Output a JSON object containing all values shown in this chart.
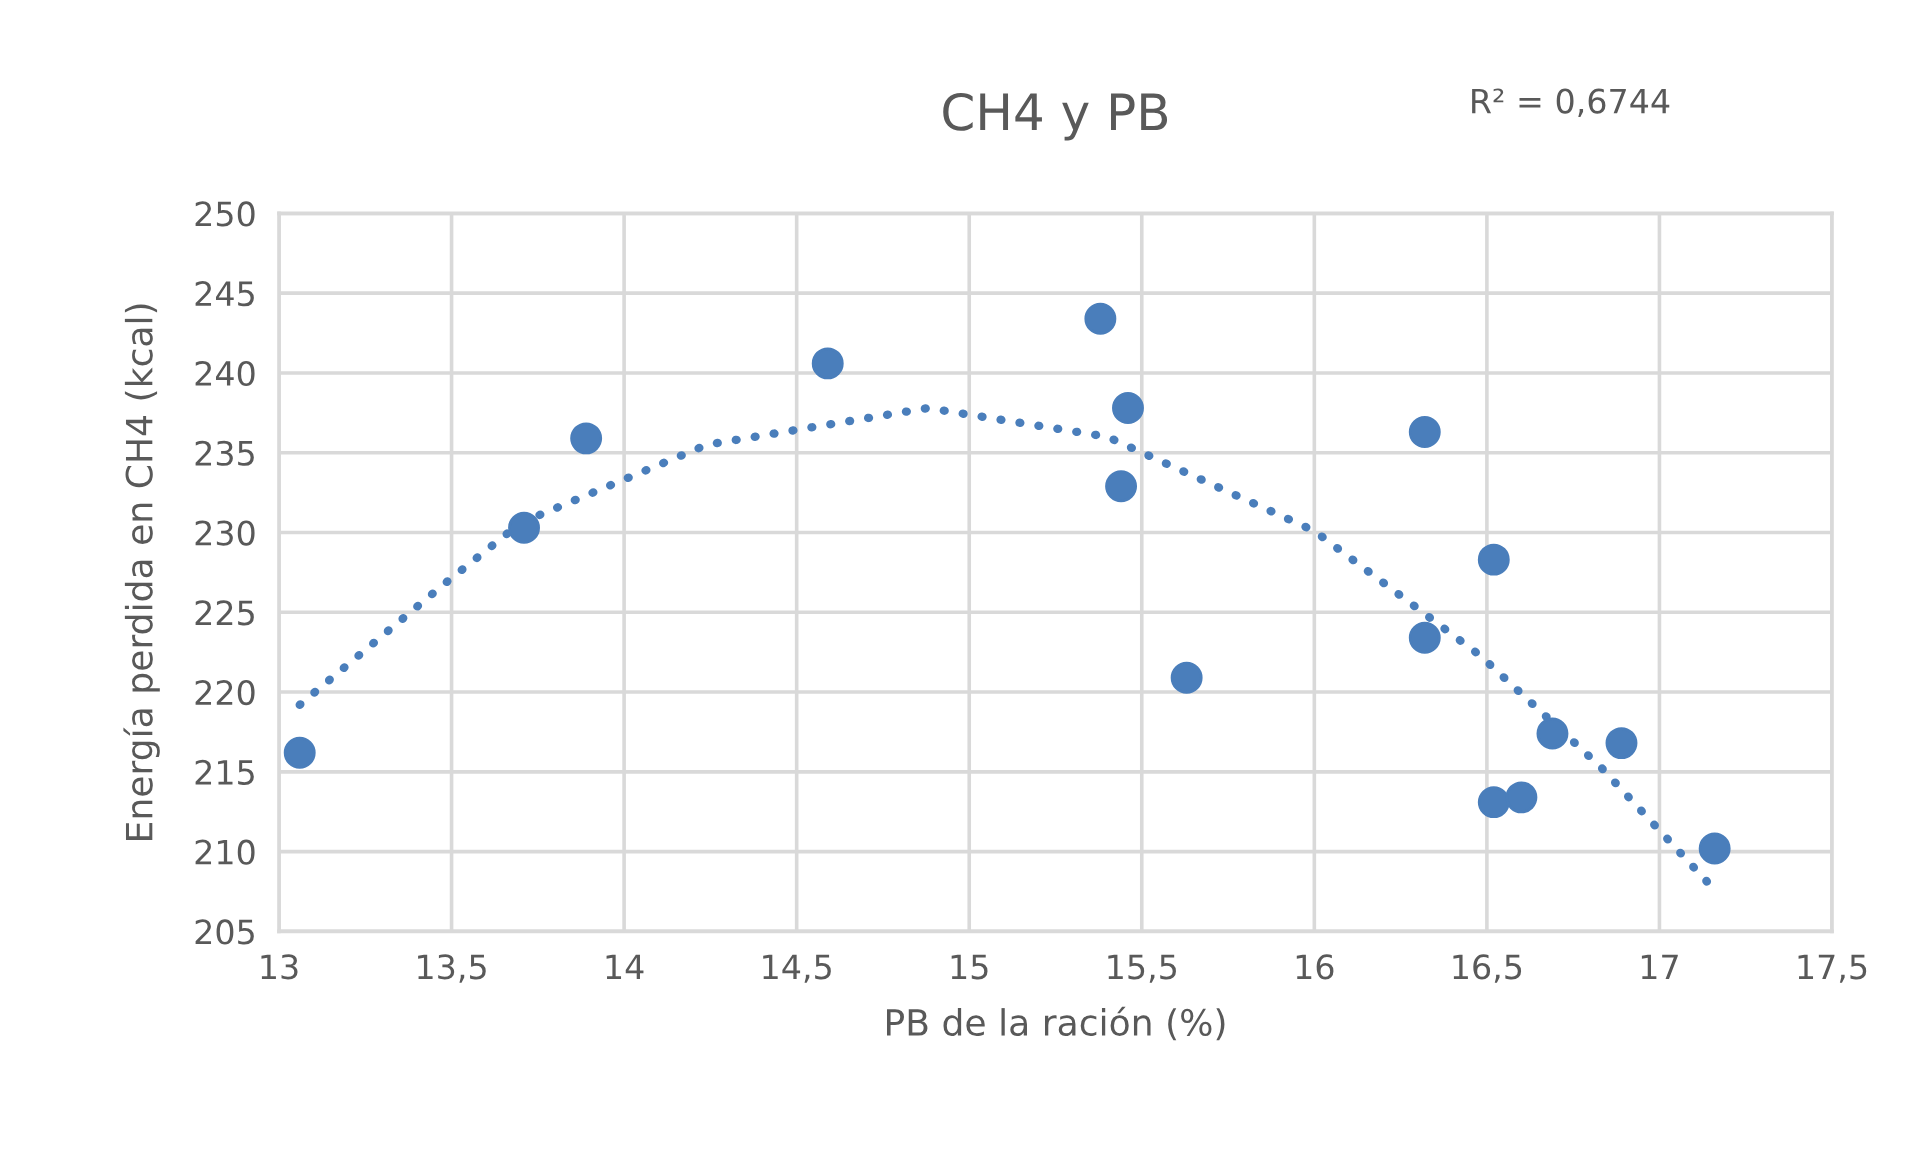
{
  "chart_data": {
    "type": "scatter",
    "title": "CH4 y PB",
    "xlabel": "PB de la ración (%)",
    "ylabel": "Energía perdida en CH4 (kcal)",
    "annotations": [
      "R² = 0,6744"
    ],
    "series": [
      {
        "color": "#4a7ebb",
        "marker": "circle",
        "x": [
          13.06,
          13.71,
          13.89,
          14.59,
          15.38,
          15.46,
          15.44,
          15.63,
          16.32,
          16.52,
          16.32,
          16.69,
          16.89,
          16.52,
          16.6,
          17.16
        ],
        "values": [
          216.2,
          230.3,
          235.9,
          240.6,
          243.4,
          237.8,
          232.9,
          220.9,
          236.3,
          228.3,
          223.4,
          217.4,
          216.8,
          213.1,
          213.4,
          210.2
        ]
      },
      {
        "type": "line",
        "color": "#4a7ebb",
        "line_style": "dotted",
        "x": [
          13.06,
          13.48,
          13.7,
          14.24,
          14.88,
          15.4,
          16.0,
          16.48,
          16.83,
          17.16
        ],
        "values": [
          219.2,
          226.8,
          230.6,
          235.5,
          237.8,
          236.0,
          230.1,
          222.3,
          215.3,
          207.6
        ]
      }
    ],
    "xlim": [
      13,
      17.5
    ],
    "xticks": [
      {
        "value": 13,
        "label": "13"
      },
      {
        "value": 13.5,
        "label": "13,5"
      },
      {
        "value": 14,
        "label": "14"
      },
      {
        "value": 14.5,
        "label": "14,5"
      },
      {
        "value": 15,
        "label": "15"
      },
      {
        "value": 15.5,
        "label": "15,5"
      },
      {
        "value": 16,
        "label": "16"
      },
      {
        "value": 16.5,
        "label": "16,5"
      },
      {
        "value": 17,
        "label": "17"
      },
      {
        "value": 17.5,
        "label": "17,5"
      }
    ],
    "ylim": [
      205,
      250
    ],
    "yticks": [
      205,
      210,
      215,
      220,
      225,
      230,
      235,
      240,
      245,
      250
    ],
    "grid": true
  }
}
